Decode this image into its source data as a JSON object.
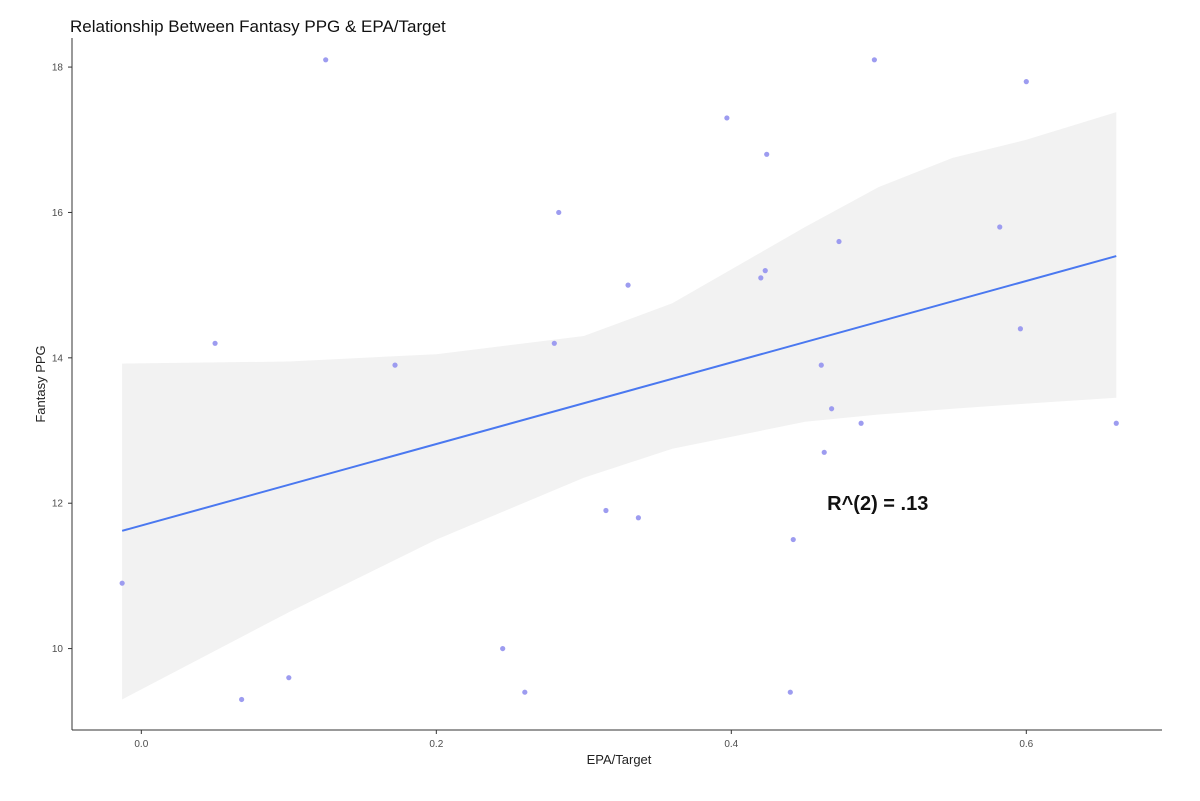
{
  "chart_data": {
    "type": "scatter",
    "title": "Relationship Between Fantasy PPG & EPA/Target",
    "xlabel": "EPA/Target",
    "ylabel": "Fantasy PPG",
    "xlim": [
      -0.047,
      0.692
    ],
    "ylim": [
      8.88,
      18.4
    ],
    "x_ticks": [
      0.0,
      0.2,
      0.4,
      0.6
    ],
    "x_tick_labels": [
      "0.0",
      "0.2",
      "0.4",
      "0.6"
    ],
    "y_ticks": [
      10,
      12,
      14,
      16,
      18
    ],
    "y_tick_labels": [
      "10",
      "12",
      "14",
      "16",
      "18"
    ],
    "grid": false,
    "points": [
      {
        "x": -0.013,
        "y": 10.9
      },
      {
        "x": 0.05,
        "y": 14.2
      },
      {
        "x": 0.068,
        "y": 9.3
      },
      {
        "x": 0.1,
        "y": 9.6
      },
      {
        "x": 0.125,
        "y": 18.1
      },
      {
        "x": 0.172,
        "y": 13.9
      },
      {
        "x": 0.245,
        "y": 10.0
      },
      {
        "x": 0.26,
        "y": 9.4
      },
      {
        "x": 0.28,
        "y": 14.2
      },
      {
        "x": 0.283,
        "y": 16.0
      },
      {
        "x": 0.315,
        "y": 11.9
      },
      {
        "x": 0.33,
        "y": 15.0
      },
      {
        "x": 0.337,
        "y": 11.8
      },
      {
        "x": 0.397,
        "y": 17.3
      },
      {
        "x": 0.42,
        "y": 15.1
      },
      {
        "x": 0.423,
        "y": 15.2
      },
      {
        "x": 0.424,
        "y": 16.8
      },
      {
        "x": 0.44,
        "y": 9.4
      },
      {
        "x": 0.442,
        "y": 11.5
      },
      {
        "x": 0.461,
        "y": 13.9
      },
      {
        "x": 0.463,
        "y": 12.7
      },
      {
        "x": 0.468,
        "y": 13.3
      },
      {
        "x": 0.473,
        "y": 15.6
      },
      {
        "x": 0.488,
        "y": 13.1
      },
      {
        "x": 0.497,
        "y": 18.1
      },
      {
        "x": 0.582,
        "y": 15.8
      },
      {
        "x": 0.596,
        "y": 14.4
      },
      {
        "x": 0.6,
        "y": 17.8
      },
      {
        "x": 0.661,
        "y": 13.1
      }
    ],
    "regression": {
      "x": [
        -0.013,
        0.661
      ],
      "y": [
        11.62,
        15.4
      ]
    },
    "confidence_band": {
      "x": [
        -0.013,
        0.1,
        0.2,
        0.3,
        0.36,
        0.45,
        0.5,
        0.55,
        0.6,
        0.661
      ],
      "lower": [
        9.3,
        10.5,
        11.5,
        12.35,
        12.75,
        13.12,
        13.22,
        13.3,
        13.37,
        13.45
      ],
      "upper": [
        13.92,
        13.95,
        14.05,
        14.3,
        14.75,
        15.8,
        16.35,
        16.75,
        17.0,
        17.38
      ]
    },
    "annotation": {
      "text": "R^(2) = .13",
      "x": 0.465,
      "y": 12.0
    },
    "colors": {
      "points": "#9d9cf0",
      "line": "#4a78f0",
      "band": "#f2f2f2",
      "axis": "#333333",
      "tick_label": "#4d4d4d"
    }
  }
}
